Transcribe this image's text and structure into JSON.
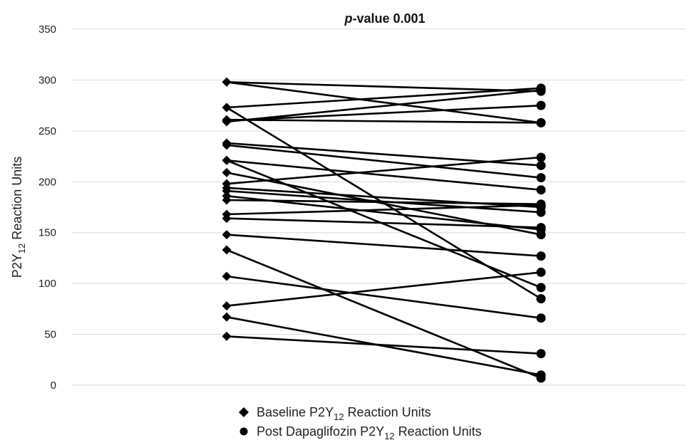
{
  "chart_data": {
    "type": "line",
    "title_prefix": "p",
    "title_suffix": "-value 0.001",
    "ylabel": {
      "prefix": "P2Y",
      "sub": "12",
      "suffix": " Reaction Units"
    },
    "ylim": [
      0,
      350
    ],
    "yticks": [
      0,
      50,
      100,
      150,
      200,
      250,
      300,
      350
    ],
    "grid": true,
    "legend": [
      {
        "prefix": "Baseline P2Y",
        "sub": "12",
        "suffix": " Reaction Units",
        "marker": "diamond"
      },
      {
        "prefix": "Post Dapaglifozin P2Y",
        "sub": "12",
        "suffix": " Reaction Units",
        "marker": "circle"
      }
    ],
    "pairs": [
      [
        298,
        289
      ],
      [
        298,
        258
      ],
      [
        273,
        292
      ],
      [
        273,
        85
      ],
      [
        261,
        258
      ],
      [
        259,
        290
      ],
      [
        260,
        275
      ],
      [
        238,
        216
      ],
      [
        236,
        204
      ],
      [
        221,
        192
      ],
      [
        221,
        96
      ],
      [
        209,
        148
      ],
      [
        198,
        224
      ],
      [
        194,
        175
      ],
      [
        191,
        170
      ],
      [
        186,
        153
      ],
      [
        182,
        178
      ],
      [
        168,
        177
      ],
      [
        164,
        155
      ],
      [
        148,
        127
      ],
      [
        133,
        7
      ],
      [
        107,
        66
      ],
      [
        78,
        111
      ],
      [
        67,
        10
      ],
      [
        48,
        31
      ]
    ],
    "line_color": "#000000",
    "grid_color": "#d9d9d9"
  }
}
